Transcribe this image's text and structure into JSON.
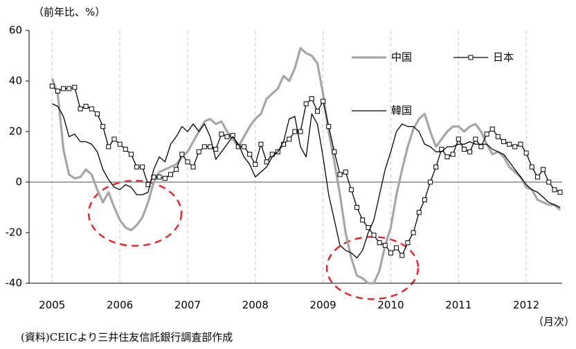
{
  "chart_data": {
    "type": "line",
    "y_label": "（前年比、%）",
    "x_label": "（月次）",
    "source": "(資料)CEICより三井住友信託銀行調査部作成",
    "x": [
      2005,
      2005.083,
      2005.167,
      2005.25,
      2005.333,
      2005.417,
      2005.5,
      2005.583,
      2005.667,
      2005.75,
      2005.833,
      2005.917,
      2006,
      2006.083,
      2006.167,
      2006.25,
      2006.333,
      2006.417,
      2006.5,
      2006.583,
      2006.667,
      2006.75,
      2006.833,
      2006.917,
      2007,
      2007.083,
      2007.167,
      2007.25,
      2007.333,
      2007.417,
      2007.5,
      2007.583,
      2007.667,
      2007.75,
      2007.833,
      2007.917,
      2008,
      2008.083,
      2008.167,
      2008.25,
      2008.333,
      2008.417,
      2008.5,
      2008.583,
      2008.667,
      2008.75,
      2008.833,
      2008.917,
      2009,
      2009.083,
      2009.167,
      2009.25,
      2009.333,
      2009.417,
      2009.5,
      2009.583,
      2009.667,
      2009.75,
      2009.833,
      2009.917,
      2010,
      2010.083,
      2010.167,
      2010.25,
      2010.333,
      2010.417,
      2010.5,
      2010.583,
      2010.667,
      2010.75,
      2010.833,
      2010.917,
      2011,
      2011.083,
      2011.167,
      2011.25,
      2011.333,
      2011.417,
      2011.5,
      2011.583,
      2011.667,
      2011.75,
      2011.833,
      2011.917,
      2012,
      2012.083,
      2012.167,
      2012.25,
      2012.333,
      2012.417,
      2012.5
    ],
    "series": [
      {
        "name": "中国",
        "color": "#a6a6a6",
        "width": 3.2,
        "marker": false,
        "values": [
          41,
          35,
          13,
          3,
          1.5,
          2,
          5,
          3,
          -3,
          -8,
          -4,
          -10,
          -15,
          -18,
          -19,
          -17,
          -14,
          -8,
          0,
          4,
          5,
          6,
          7,
          10,
          12,
          16,
          20,
          24,
          25,
          23,
          24,
          20,
          17,
          14,
          18,
          22,
          25,
          27,
          33,
          35,
          37,
          42,
          40,
          45,
          53,
          51,
          50,
          47,
          35,
          20,
          8,
          -5,
          -20,
          -30,
          -37,
          -38,
          -40,
          -40,
          -35,
          -25,
          -18,
          -5,
          5,
          14,
          21,
          25,
          27,
          20,
          14,
          17,
          20,
          22,
          22,
          20,
          22,
          23,
          20,
          15,
          11,
          12,
          10,
          6,
          4,
          2,
          -2,
          -3,
          -7,
          -8,
          -9,
          -9,
          -11
        ]
      },
      {
        "name": "日本",
        "color": "#000000",
        "width": 1.3,
        "marker": true,
        "values": [
          38,
          36,
          37,
          37,
          37.5,
          29,
          30,
          29,
          27,
          22,
          14,
          17,
          15,
          13,
          11,
          6,
          6,
          -1,
          2,
          2,
          1.5,
          3,
          5,
          11,
          8,
          6,
          12,
          14,
          14,
          13,
          19,
          18,
          18.5,
          14,
          14,
          11,
          7,
          15,
          8,
          11,
          12,
          15,
          17,
          20,
          20,
          31,
          33,
          28,
          32,
          22,
          12,
          3,
          4,
          -3,
          -10,
          -15,
          -18,
          -21,
          -24,
          -25,
          -28,
          -26,
          -29,
          -24,
          -20,
          -12,
          -7,
          0,
          6,
          13,
          10,
          11,
          17,
          13,
          12,
          17,
          14,
          19,
          21,
          18,
          16,
          15,
          14,
          15,
          11.5,
          6,
          2,
          5,
          0,
          -3,
          -4
        ]
      },
      {
        "name": "韓国",
        "color": "#000000",
        "width": 1.3,
        "marker": false,
        "values": [
          31,
          30,
          26,
          18,
          19,
          16,
          16,
          15,
          12,
          5,
          1,
          -2,
          -3,
          -1,
          -2,
          -5,
          -5,
          -4,
          5,
          10,
          8,
          15,
          18,
          22,
          20,
          23,
          20,
          23,
          18,
          9,
          12,
          15,
          18,
          15,
          10,
          7,
          2,
          4,
          6,
          10,
          12,
          16,
          25,
          26,
          14,
          10,
          27,
          23,
          10,
          -5,
          -15,
          -25,
          -27,
          -28,
          -30,
          -27,
          -20,
          -15,
          -5,
          5,
          12,
          20,
          23,
          22,
          22,
          20,
          15,
          14,
          12,
          12,
          14,
          14,
          15,
          15,
          16,
          15,
          15,
          15,
          13,
          12,
          11,
          8,
          5,
          2,
          -1,
          -3,
          -4,
          -6,
          -8,
          -9,
          -10
        ]
      }
    ],
    "xlim": [
      2004.66,
      2012.53
    ],
    "xticks": [
      2005,
      2006,
      2007,
      2008,
      2009,
      2010,
      2011,
      2012
    ],
    "ylim": [
      -40,
      60
    ],
    "yticks": [
      -40,
      -20,
      0,
      20,
      40,
      60
    ],
    "xgrid": true
  }
}
